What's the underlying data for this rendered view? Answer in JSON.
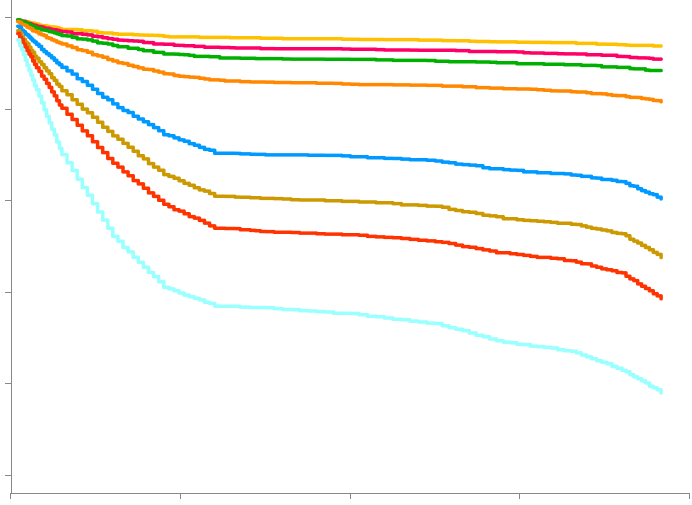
{
  "chart_data": {
    "type": "line",
    "title": "",
    "xlabel": "",
    "ylabel": "",
    "xlim": [
      0,
      4
    ],
    "ylim": [
      0,
      5
    ],
    "grid": false,
    "legend": "none",
    "x_ticks": [
      0,
      1,
      2,
      3,
      4
    ],
    "y_ticks": [
      0,
      1,
      2,
      3,
      4,
      5
    ],
    "series": [
      {
        "color": "#FFC000",
        "points": [
          [
            0.04,
            4.97
          ],
          [
            0.15,
            4.92
          ],
          [
            0.3,
            4.87
          ],
          [
            0.6,
            4.82
          ],
          [
            0.9,
            4.79
          ],
          [
            1.2,
            4.78
          ],
          [
            1.5,
            4.77
          ],
          [
            2.0,
            4.76
          ],
          [
            2.5,
            4.75
          ],
          [
            2.9,
            4.73
          ],
          [
            3.3,
            4.72
          ],
          [
            3.6,
            4.7
          ],
          [
            3.83,
            4.68
          ]
        ]
      },
      {
        "color": "#FF0066",
        "points": [
          [
            0.04,
            4.97
          ],
          [
            0.15,
            4.9
          ],
          [
            0.3,
            4.84
          ],
          [
            0.6,
            4.76
          ],
          [
            0.9,
            4.7
          ],
          [
            1.2,
            4.67
          ],
          [
            1.5,
            4.66
          ],
          [
            2.0,
            4.65
          ],
          [
            2.5,
            4.64
          ],
          [
            2.9,
            4.62
          ],
          [
            3.3,
            4.6
          ],
          [
            3.6,
            4.57
          ],
          [
            3.83,
            4.54
          ]
        ]
      },
      {
        "color": "#00B000",
        "points": [
          [
            0.04,
            4.97
          ],
          [
            0.15,
            4.88
          ],
          [
            0.3,
            4.8
          ],
          [
            0.6,
            4.69
          ],
          [
            0.9,
            4.6
          ],
          [
            1.2,
            4.56
          ],
          [
            1.5,
            4.55
          ],
          [
            2.0,
            4.54
          ],
          [
            2.5,
            4.52
          ],
          [
            2.9,
            4.5
          ],
          [
            3.3,
            4.48
          ],
          [
            3.6,
            4.45
          ],
          [
            3.83,
            4.41
          ]
        ]
      },
      {
        "color": "#FF8800",
        "points": [
          [
            0.04,
            4.95
          ],
          [
            0.15,
            4.83
          ],
          [
            0.3,
            4.7
          ],
          [
            0.6,
            4.52
          ],
          [
            0.9,
            4.38
          ],
          [
            1.2,
            4.31
          ],
          [
            1.5,
            4.29
          ],
          [
            2.0,
            4.27
          ],
          [
            2.5,
            4.25
          ],
          [
            2.9,
            4.22
          ],
          [
            3.3,
            4.19
          ],
          [
            3.6,
            4.14
          ],
          [
            3.83,
            4.08
          ]
        ]
      },
      {
        "color": "#0099FF",
        "points": [
          [
            0.04,
            4.9
          ],
          [
            0.15,
            4.7
          ],
          [
            0.3,
            4.45
          ],
          [
            0.6,
            4.05
          ],
          [
            0.9,
            3.72
          ],
          [
            1.2,
            3.52
          ],
          [
            1.5,
            3.5
          ],
          [
            2.0,
            3.48
          ],
          [
            2.5,
            3.43
          ],
          [
            2.9,
            3.33
          ],
          [
            3.3,
            3.28
          ],
          [
            3.6,
            3.2
          ],
          [
            3.83,
            3.02
          ]
        ]
      },
      {
        "color": "#CC9900",
        "points": [
          [
            0.04,
            4.85
          ],
          [
            0.15,
            4.55
          ],
          [
            0.3,
            4.2
          ],
          [
            0.6,
            3.7
          ],
          [
            0.9,
            3.28
          ],
          [
            1.2,
            3.05
          ],
          [
            1.5,
            3.02
          ],
          [
            2.0,
            2.99
          ],
          [
            2.5,
            2.93
          ],
          [
            2.9,
            2.8
          ],
          [
            3.3,
            2.74
          ],
          [
            3.6,
            2.63
          ],
          [
            3.83,
            2.38
          ]
        ]
      },
      {
        "color": "#FF3300",
        "points": [
          [
            0.04,
            4.82
          ],
          [
            0.15,
            4.45
          ],
          [
            0.3,
            4.0
          ],
          [
            0.6,
            3.4
          ],
          [
            0.9,
            2.95
          ],
          [
            1.2,
            2.7
          ],
          [
            1.5,
            2.66
          ],
          [
            2.0,
            2.62
          ],
          [
            2.5,
            2.55
          ],
          [
            2.9,
            2.42
          ],
          [
            3.3,
            2.34
          ],
          [
            3.6,
            2.2
          ],
          [
            3.83,
            1.93
          ]
        ]
      },
      {
        "color": "#99FFFF",
        "points": [
          [
            0.04,
            4.75
          ],
          [
            0.15,
            4.2
          ],
          [
            0.3,
            3.5
          ],
          [
            0.6,
            2.6
          ],
          [
            0.9,
            2.05
          ],
          [
            1.2,
            1.85
          ],
          [
            1.5,
            1.82
          ],
          [
            2.0,
            1.76
          ],
          [
            2.5,
            1.65
          ],
          [
            2.9,
            1.45
          ],
          [
            3.3,
            1.35
          ],
          [
            3.6,
            1.15
          ],
          [
            3.83,
            0.9
          ]
        ]
      }
    ]
  }
}
